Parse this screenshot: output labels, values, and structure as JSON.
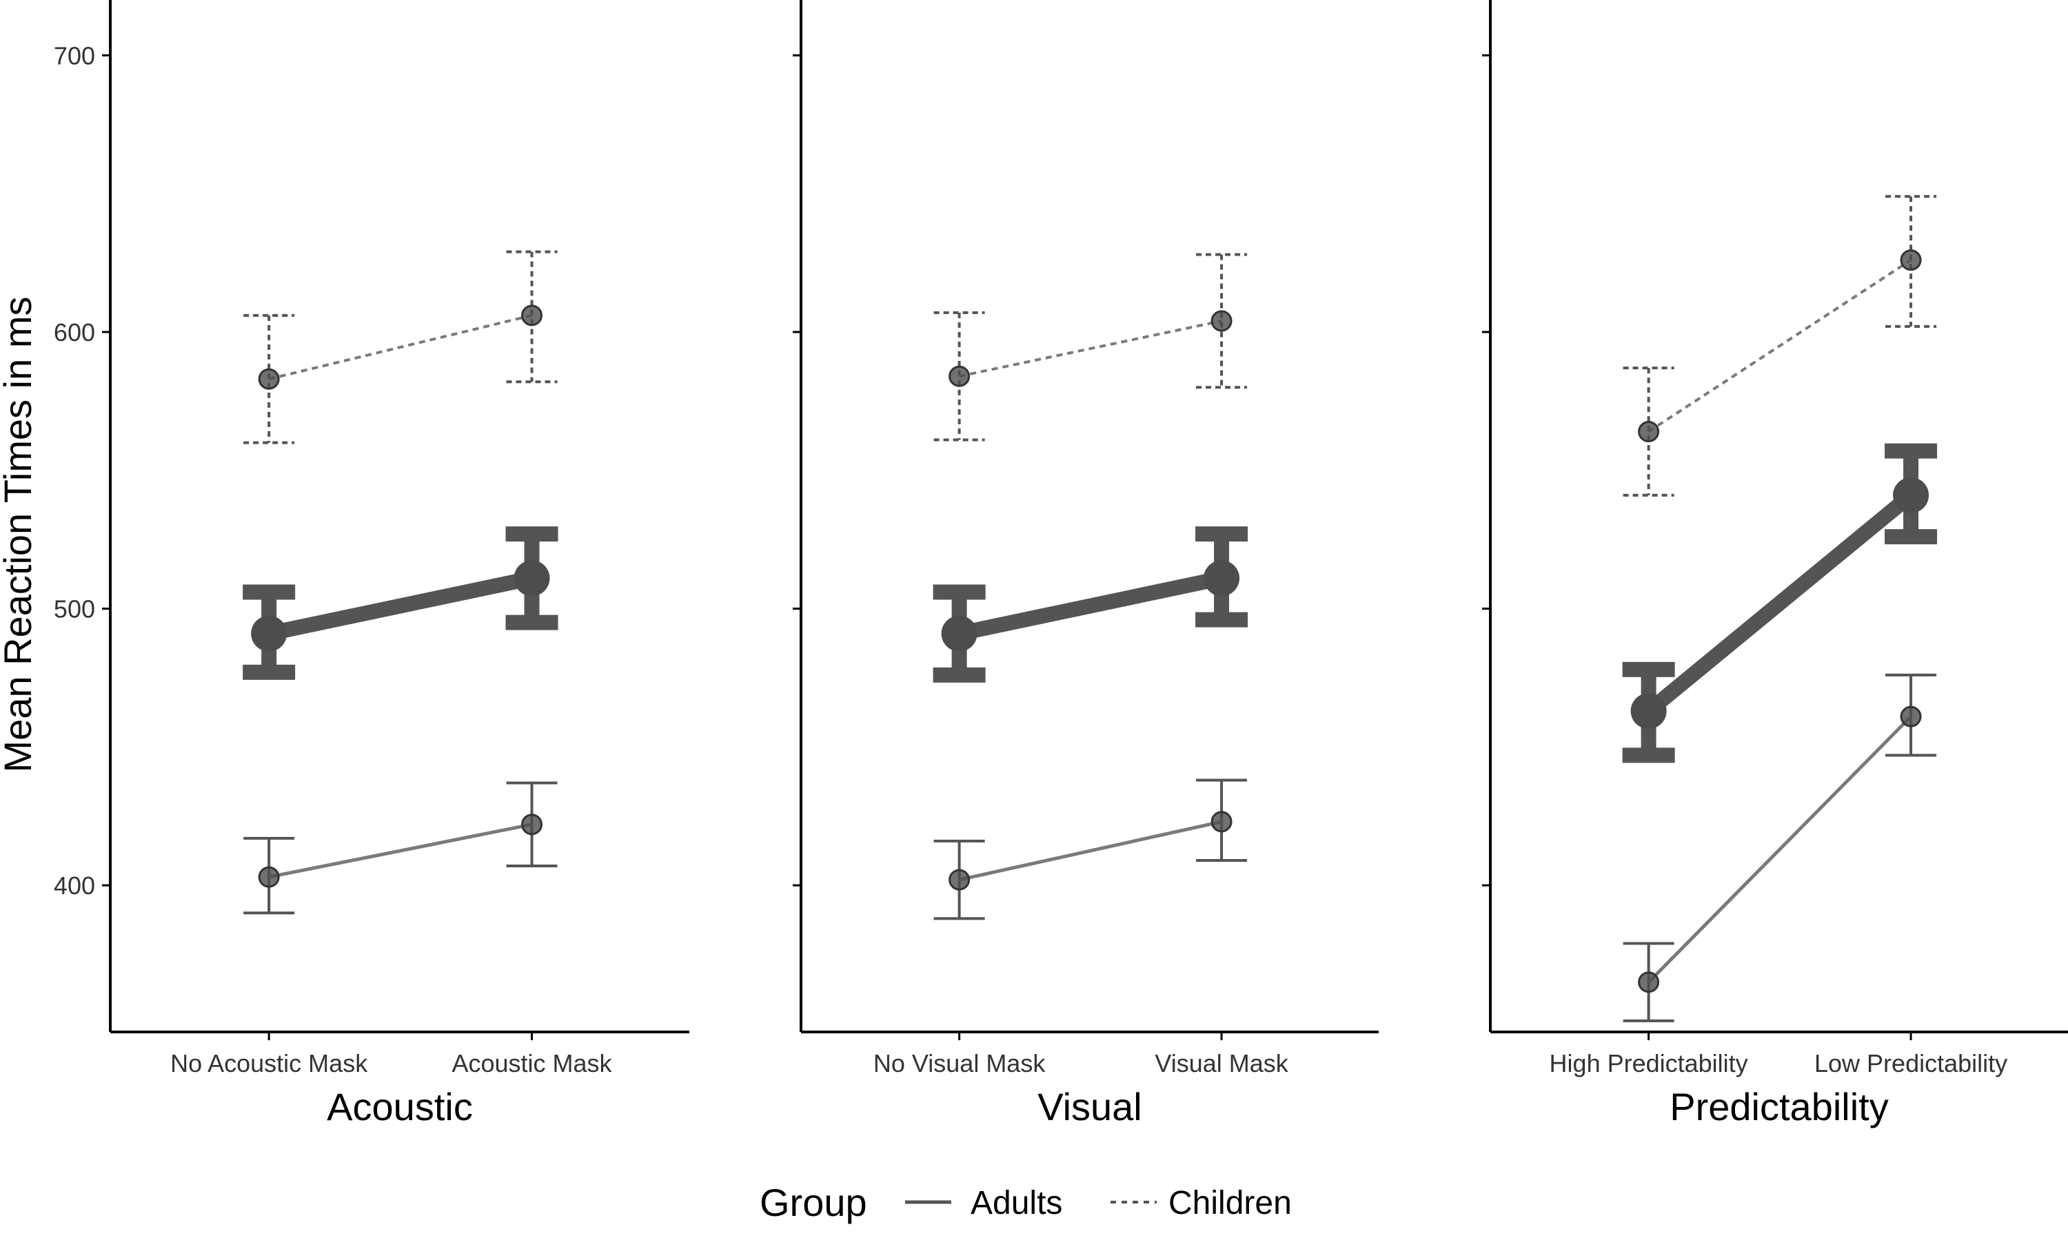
{
  "y_axis": {
    "label": "Mean Reaction Times in ms",
    "ticks": [
      400,
      500,
      600,
      700
    ],
    "range": [
      347,
      720
    ]
  },
  "legend": {
    "title": "Group",
    "items": [
      {
        "label": "Adults",
        "style": "solid"
      },
      {
        "label": "Children",
        "style": "dashed"
      }
    ]
  },
  "colors": {
    "line": "#545454",
    "point": "#4d4d4d",
    "axis": "#000000",
    "tick_text": "#333333"
  },
  "chart_data": [
    {
      "type": "line",
      "panel": "Acoustic",
      "xlabel": "Acoustic",
      "ylabel": "Mean Reaction Times in ms",
      "categories": [
        "No Acoustic Mask",
        "Acoustic Mask"
      ],
      "ylim": [
        347,
        720
      ],
      "series": [
        {
          "name": "Adults",
          "values": [
            403,
            422
          ],
          "lower": [
            390,
            407
          ],
          "upper": [
            417,
            437
          ]
        },
        {
          "name": "Children",
          "values": [
            583,
            606
          ],
          "lower": [
            560,
            582
          ],
          "upper": [
            606,
            629
          ]
        },
        {
          "values": [
            491,
            511
          ],
          "lower": [
            477,
            495
          ],
          "upper": [
            506,
            527
          ]
        }
      ]
    },
    {
      "type": "line",
      "panel": "Visual",
      "xlabel": "Visual",
      "ylabel": "",
      "categories": [
        "No Visual Mask",
        "Visual Mask"
      ],
      "ylim": [
        347,
        720
      ],
      "series": [
        {
          "name": "Adults",
          "values": [
            402,
            423
          ],
          "lower": [
            388,
            409
          ],
          "upper": [
            416,
            438
          ]
        },
        {
          "name": "Children",
          "values": [
            584,
            604
          ],
          "lower": [
            561,
            580
          ],
          "upper": [
            607,
            628
          ]
        },
        {
          "values": [
            491,
            511
          ],
          "lower": [
            476,
            496
          ],
          "upper": [
            506,
            527
          ]
        }
      ]
    },
    {
      "type": "line",
      "panel": "Predictability",
      "xlabel": "Predictability",
      "ylabel": "",
      "categories": [
        "High Predictability",
        "Low Predictability"
      ],
      "ylim": [
        347,
        720
      ],
      "series": [
        {
          "name": "Adults",
          "values": [
            365,
            461
          ],
          "lower": [
            351,
            447
          ],
          "upper": [
            379,
            476
          ]
        },
        {
          "name": "Children",
          "values": [
            564,
            626
          ],
          "lower": [
            541,
            602
          ],
          "upper": [
            587,
            649
          ]
        },
        {
          "values": [
            463,
            541
          ],
          "lower": [
            447,
            526
          ],
          "upper": [
            478,
            557
          ]
        }
      ]
    }
  ]
}
